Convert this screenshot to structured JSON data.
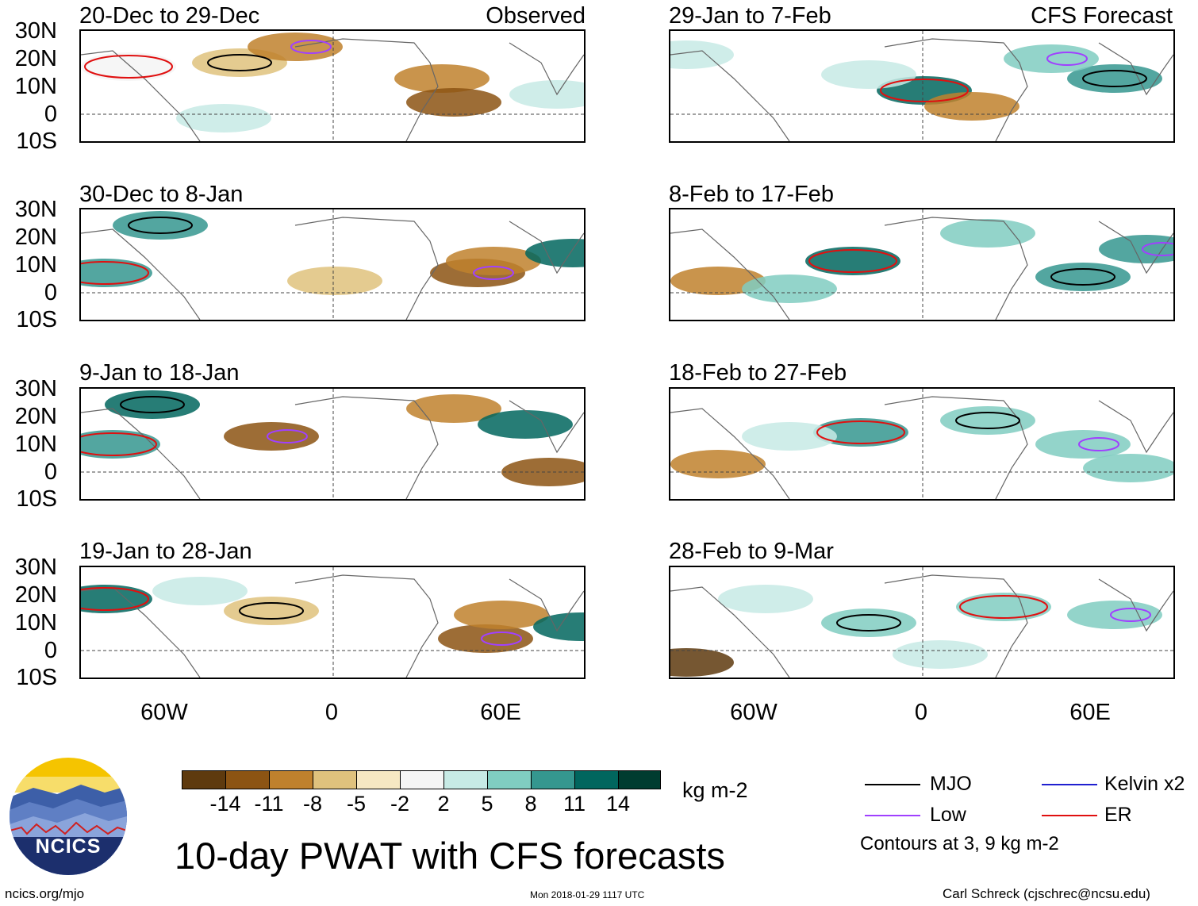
{
  "colors": {
    "mjo": "#000000",
    "low": "#a040ff",
    "kelvin": "#2020d0",
    "er": "#e01010",
    "coast": "#666666"
  },
  "panels": [
    {
      "title": "20-Dec to 29-Dec",
      "tag": "Observed"
    },
    {
      "title": "29-Jan to 7-Feb",
      "tag": "CFS Forecast"
    },
    {
      "title": "30-Dec to 8-Jan",
      "tag": ""
    },
    {
      "title": "8-Feb to 17-Feb",
      "tag": ""
    },
    {
      "title": "9-Jan to 18-Jan",
      "tag": ""
    },
    {
      "title": "18-Feb to 27-Feb",
      "tag": ""
    },
    {
      "title": "19-Jan to 28-Jan",
      "tag": ""
    },
    {
      "title": "28-Feb to 9-Mar",
      "tag": ""
    }
  ],
  "lat_labels": [
    "30N",
    "20N",
    "10N",
    "0",
    "10S"
  ],
  "lon_labels": [
    "60W",
    "0",
    "60E"
  ],
  "colorbar": {
    "colors": [
      "#5e3a0e",
      "#8c5413",
      "#bf812d",
      "#dfc27d",
      "#f6e8c3",
      "#f5f5f5",
      "#c7eae5",
      "#80cdc1",
      "#35978f",
      "#01665e",
      "#003c30"
    ],
    "labels": [
      "-14",
      "-11",
      "-8",
      "-5",
      "-2",
      "2",
      "5",
      "8",
      "11",
      "14"
    ],
    "units": "kg m-2"
  },
  "title": "10-day PWAT with CFS forecasts",
  "legend": {
    "mjo": "MJO",
    "kelvin": "Kelvin x2",
    "low": "Low",
    "er": "ER",
    "note": "Contours at 3, 9 kg m-2"
  },
  "footer": {
    "url": "ncics.org/mjo",
    "timestamp": "Mon 2018-01-29 1117 UTC",
    "credit": "Carl Schreck (cjschrec@ncsu.edu)"
  },
  "logo_text": "NCICS"
}
